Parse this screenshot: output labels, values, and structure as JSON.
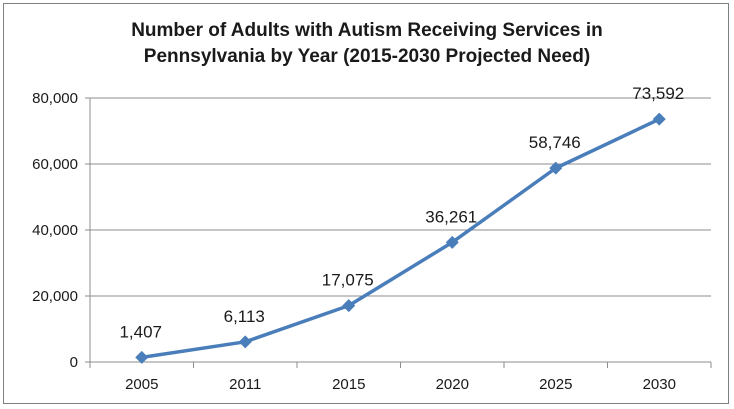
{
  "chart_data": {
    "type": "line",
    "title_lines": [
      "Number of Adults with Autism Receiving Services in",
      "Pennsylvania by Year (2015-2030 Projected Need)"
    ],
    "categories": [
      "2005",
      "2011",
      "2015",
      "2020",
      "2025",
      "2030"
    ],
    "series": [
      {
        "values": [
          1407,
          6113,
          17075,
          36261,
          58746,
          73592
        ],
        "data_labels": [
          "1,407",
          "6,113",
          "17,075",
          "36,261",
          "58,746",
          "73,592"
        ],
        "color": "#4a7ebb",
        "marker": "diamond"
      }
    ],
    "ylim": [
      0,
      80000
    ],
    "yticks": [
      0,
      20000,
      40000,
      60000,
      80000
    ],
    "ytick_labels": [
      "0",
      "20,000",
      "40,000",
      "60,000",
      "80,000"
    ],
    "grid": true,
    "legend": false,
    "xlabel": "",
    "ylabel": ""
  }
}
